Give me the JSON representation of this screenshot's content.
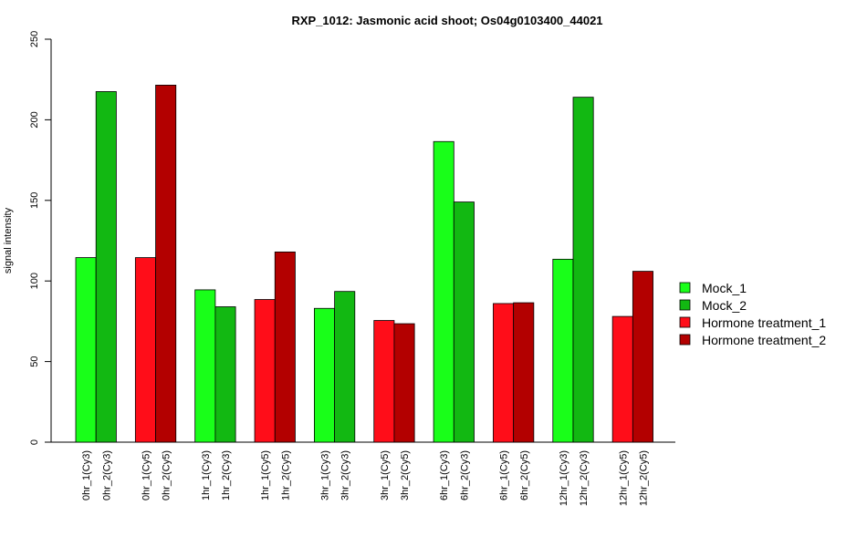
{
  "chart_data": {
    "type": "bar",
    "title": "RXP_1012: Jasmonic acid shoot; Os04g0103400_44021",
    "ylabel": "signal intensity",
    "ylim": [
      0,
      250
    ],
    "yticks": [
      0,
      50,
      100,
      150,
      200,
      250
    ],
    "grid": false,
    "legend_position": "right",
    "groups": [
      {
        "bars": [
          {
            "label": "0hr_1(Cy3)",
            "value": 114.5,
            "series": "Mock_1"
          },
          {
            "label": "0hr_2(Cy3)",
            "value": 217.5,
            "series": "Mock_2"
          }
        ]
      },
      {
        "bars": [
          {
            "label": "0hr_1(Cy5)",
            "value": 114.5,
            "series": "Hormone treatment_1"
          },
          {
            "label": "0hr_2(Cy5)",
            "value": 221.5,
            "series": "Hormone treatment_2"
          }
        ]
      },
      {
        "bars": [
          {
            "label": "1hr_1(Cy3)",
            "value": 94.5,
            "series": "Mock_1"
          },
          {
            "label": "1hr_2(Cy3)",
            "value": 84.0,
            "series": "Mock_2"
          }
        ]
      },
      {
        "bars": [
          {
            "label": "1hr_1(Cy5)",
            "value": 88.5,
            "series": "Hormone treatment_1"
          },
          {
            "label": "1hr_2(Cy5)",
            "value": 118.0,
            "series": "Hormone treatment_2"
          }
        ]
      },
      {
        "bars": [
          {
            "label": "3hr_1(Cy3)",
            "value": 83.0,
            "series": "Mock_1"
          },
          {
            "label": "3hr_2(Cy3)",
            "value": 93.5,
            "series": "Mock_2"
          }
        ]
      },
      {
        "bars": [
          {
            "label": "3hr_1(Cy5)",
            "value": 75.5,
            "series": "Hormone treatment_1"
          },
          {
            "label": "3hr_2(Cy5)",
            "value": 73.5,
            "series": "Hormone treatment_2"
          }
        ]
      },
      {
        "bars": [
          {
            "label": "6hr_1(Cy3)",
            "value": 186.5,
            "series": "Mock_1"
          },
          {
            "label": "6hr_2(Cy3)",
            "value": 149.0,
            "series": "Mock_2"
          }
        ]
      },
      {
        "bars": [
          {
            "label": "6hr_1(Cy5)",
            "value": 86.0,
            "series": "Hormone treatment_1"
          },
          {
            "label": "6hr_2(Cy5)",
            "value": 86.5,
            "series": "Hormone treatment_2"
          }
        ]
      },
      {
        "bars": [
          {
            "label": "12hr_1(Cy3)",
            "value": 113.5,
            "series": "Mock_1"
          },
          {
            "label": "12hr_2(Cy3)",
            "value": 214.0,
            "series": "Mock_2"
          }
        ]
      },
      {
        "bars": [
          {
            "label": "12hr_1(Cy5)",
            "value": 78.0,
            "series": "Hormone treatment_1"
          },
          {
            "label": "12hr_2(Cy5)",
            "value": 106.0,
            "series": "Hormone treatment_2"
          }
        ]
      }
    ],
    "legend": [
      {
        "name": "Mock_1",
        "color": "#19ff19"
      },
      {
        "name": "Mock_2",
        "color": "#12b812"
      },
      {
        "name": "Hormone treatment_1",
        "color": "#ff0d19"
      },
      {
        "name": "Hormone treatment_2",
        "color": "#b30000"
      }
    ]
  }
}
